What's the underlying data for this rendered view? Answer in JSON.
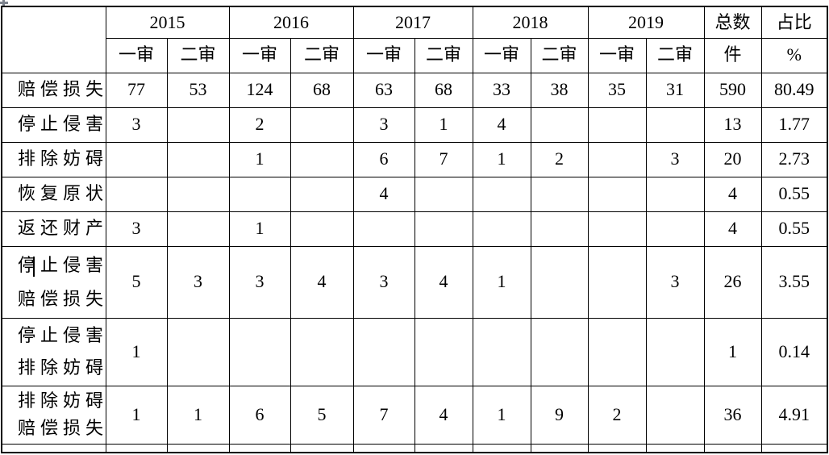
{
  "page": {
    "background_color": "#ffffff",
    "text_color": "#000000",
    "border_color": "#000000",
    "handle_color": "#7d838d"
  },
  "icons": {
    "table_move_handle": "move-cross"
  },
  "table": {
    "corner_header": "",
    "year_groups": [
      {
        "year": "2015",
        "sub": [
          "一审",
          "二审"
        ]
      },
      {
        "year": "2016",
        "sub": [
          "一审",
          "二审"
        ]
      },
      {
        "year": "2017",
        "sub": [
          "一审",
          "二审"
        ]
      },
      {
        "year": "2018",
        "sub": [
          "一审",
          "二审"
        ]
      },
      {
        "year": "2019",
        "sub": [
          "一审",
          "二审"
        ]
      }
    ],
    "total_col": {
      "top": "总数",
      "bottom": "件"
    },
    "share_col": {
      "top": "占比",
      "bottom": "%"
    },
    "rows": [
      {
        "label": [
          "赔偿损失"
        ],
        "values": [
          "77",
          "53",
          "124",
          "68",
          "63",
          "68",
          "33",
          "38",
          "35",
          "31",
          "590",
          "80.49"
        ]
      },
      {
        "label": [
          "停止侵害"
        ],
        "values": [
          "3",
          "",
          "2",
          "",
          "3",
          "1",
          "4",
          "",
          "",
          "",
          "13",
          "1.77"
        ]
      },
      {
        "label": [
          "排除妨碍"
        ],
        "values": [
          "",
          "",
          "1",
          "",
          "6",
          "7",
          "1",
          "2",
          "",
          "3",
          "20",
          "2.73"
        ]
      },
      {
        "label": [
          "恢复原状"
        ],
        "values": [
          "",
          "",
          "",
          "",
          "4",
          "",
          "",
          "",
          "",
          "",
          "4",
          "0.55"
        ]
      },
      {
        "label": [
          "返还财产"
        ],
        "values": [
          "3",
          "",
          "1",
          "",
          "",
          "",
          "",
          "",
          "",
          "",
          "4",
          "0.55"
        ]
      },
      {
        "label": [
          "停止侵害",
          "赔偿损失"
        ],
        "caret": true,
        "values": [
          "5",
          "3",
          "3",
          "4",
          "3",
          "4",
          "1",
          "",
          "",
          "3",
          "26",
          "3.55"
        ]
      },
      {
        "label": [
          "停止侵害",
          "排除妨碍"
        ],
        "values": [
          "1",
          "",
          "",
          "",
          "",
          "",
          "",
          "",
          "",
          "",
          "1",
          "0.14"
        ]
      },
      {
        "label": [
          "排除妨碍",
          "赔偿损失"
        ],
        "values": [
          "1",
          "1",
          "6",
          "5",
          "7",
          "4",
          "1",
          "9",
          "2",
          "",
          "36",
          "4.91"
        ]
      },
      {
        "label": [],
        "partial": true,
        "values": [
          "",
          "",
          "",
          "",
          "",
          "",
          "",
          "",
          "",
          "",
          "",
          ""
        ]
      }
    ]
  }
}
